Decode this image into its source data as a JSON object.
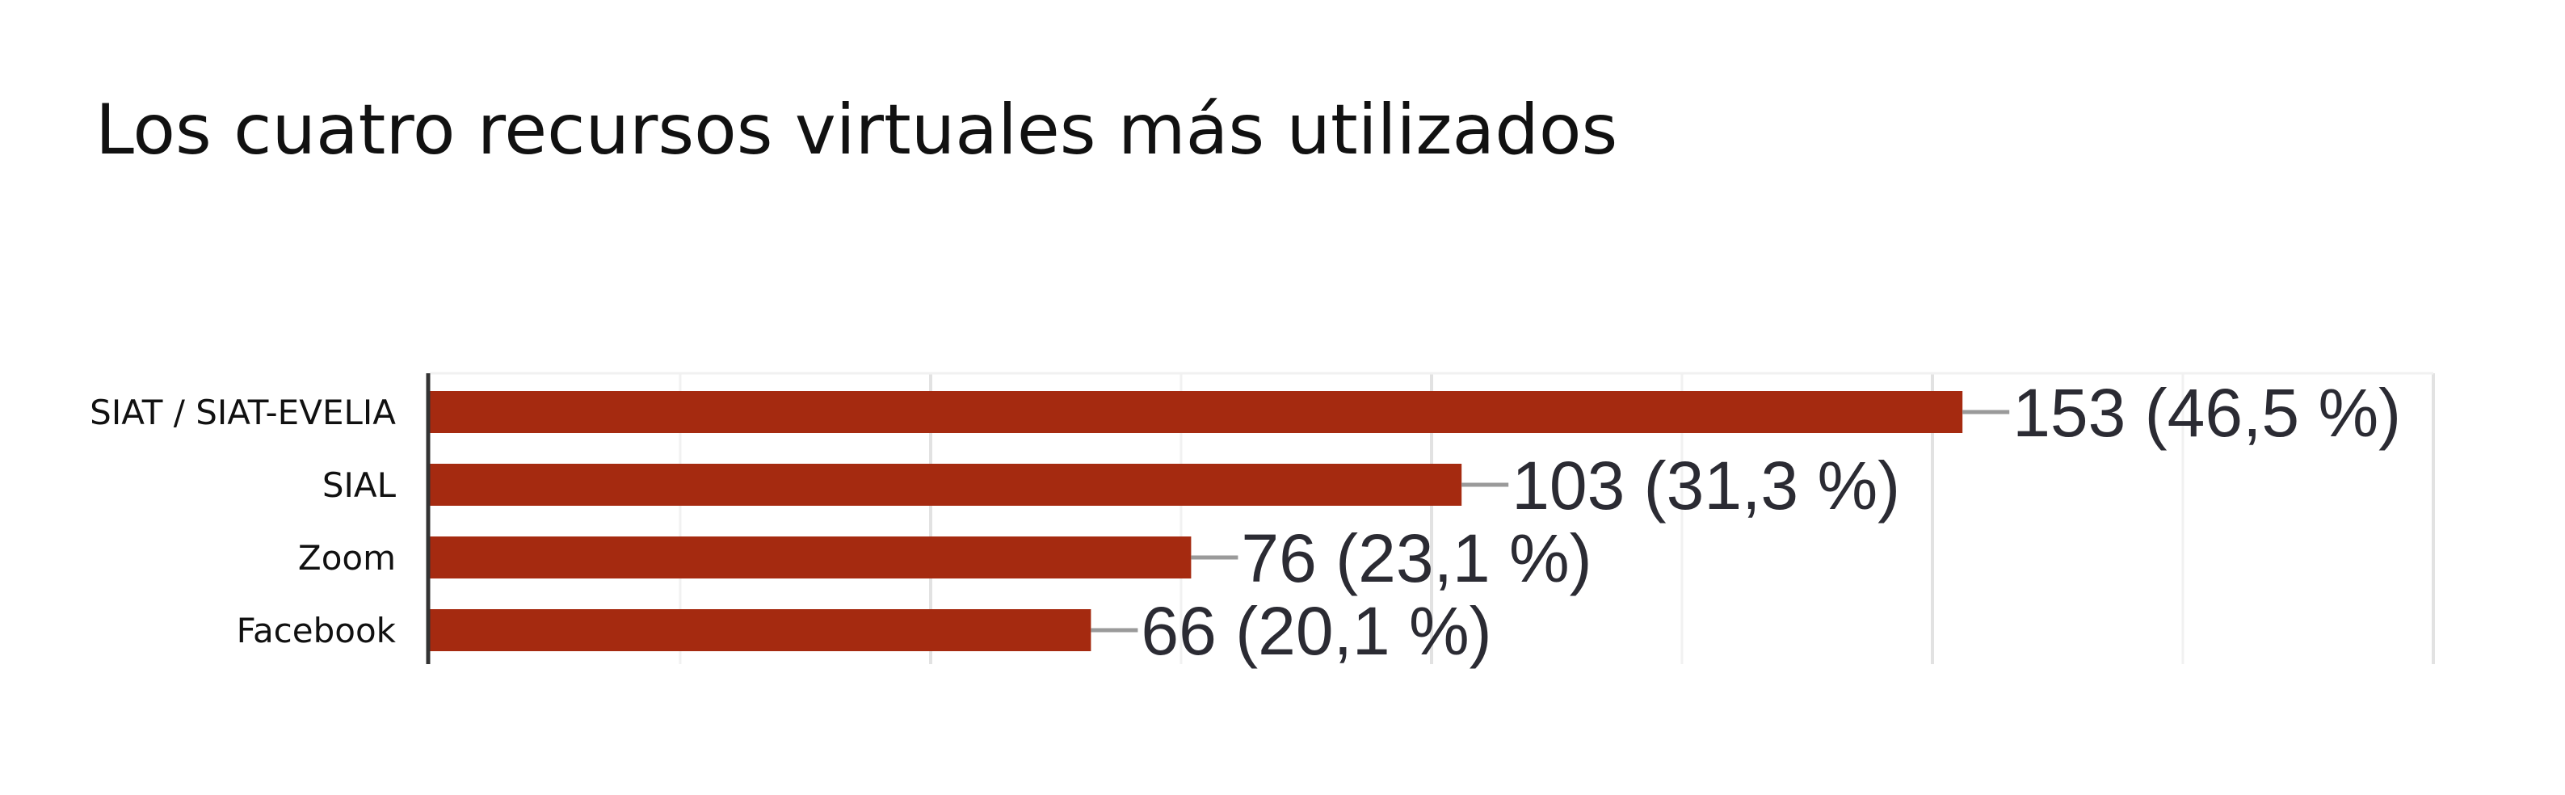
{
  "chart_data": {
    "type": "bar",
    "orientation": "horizontal",
    "title": "Los cuatro recursos virtuales más utilizados",
    "categories": [
      "SIAT / SIAT-EVELIA",
      "SIAL",
      "Zoom",
      "Facebook"
    ],
    "values": [
      153,
      103,
      76,
      66
    ],
    "value_labels": [
      "153 (46,5 %)",
      "103 (31,3 %)",
      "76 (23,1 %)",
      "66 (20,1 %)"
    ],
    "xlim": [
      0,
      200
    ],
    "grid": true,
    "legend": "none",
    "bar_color": "#a52a10"
  }
}
